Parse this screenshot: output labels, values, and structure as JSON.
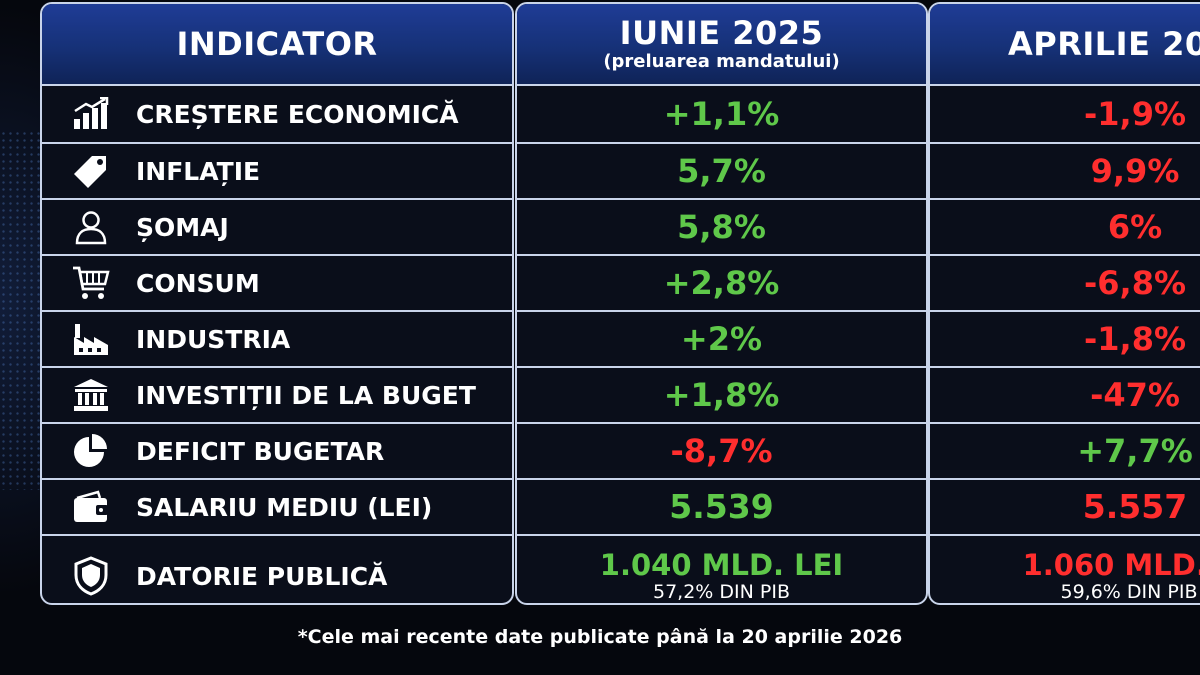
{
  "header": {
    "indicator": "INDICATOR",
    "col1_title": "IUNIE 2025",
    "col1_sub": "(preluarea mandatului)",
    "col2_title": "APRILIE 20"
  },
  "rows": [
    {
      "icon": "growth-chart-icon",
      "label": "CREȘTERE ECONOMICĂ",
      "jun": "+1,1%",
      "jun_color": "green",
      "apr": "-1,9%",
      "apr_color": "red"
    },
    {
      "icon": "price-tag-icon",
      "label": "INFLAȚIE",
      "jun": "5,7%",
      "jun_color": "green",
      "apr": "9,9%",
      "apr_color": "red"
    },
    {
      "icon": "person-icon",
      "label": "ȘOMAJ",
      "jun": "5,8%",
      "jun_color": "green",
      "apr": "6%",
      "apr_color": "red"
    },
    {
      "icon": "shopping-cart-icon",
      "label": "CONSUM",
      "jun": "+2,8%",
      "jun_color": "green",
      "apr": "-6,8%",
      "apr_color": "red"
    },
    {
      "icon": "factory-icon",
      "label": "INDUSTRIA",
      "jun": "+2%",
      "jun_color": "green",
      "apr": "-1,8%",
      "apr_color": "red"
    },
    {
      "icon": "bank-building-icon",
      "label": "INVESTIȚII DE LA BUGET",
      "jun": "+1,8%",
      "jun_color": "green",
      "apr": "-47%",
      "apr_color": "red"
    },
    {
      "icon": "pie-chart-icon",
      "label": "DEFICIT BUGETAR",
      "jun": "-8,7%",
      "jun_color": "red",
      "apr": "+7,7%",
      "apr_color": "green"
    },
    {
      "icon": "wallet-icon",
      "label": "SALARIU MEDIU (LEI)",
      "jun": "5.539",
      "jun_color": "green",
      "apr": "5.557",
      "apr_color": "red"
    },
    {
      "icon": "shield-icon",
      "label": "DATORIE PUBLICĂ",
      "jun": "1.040 MLD. LEI",
      "jun_sub": "57,2% DIN PIB",
      "jun_color": "green",
      "apr": "1.060 MLD. L",
      "apr_sub": "59,6% DIN PIB",
      "apr_color": "red"
    }
  ],
  "footnote": "*Cele mai recente date publicate până la 20 aprilie 2026",
  "colors": {
    "green": "#5fc84a",
    "red": "#ff2e2e",
    "header_blue": "#1f3c96",
    "border": "#c9d4ea"
  }
}
